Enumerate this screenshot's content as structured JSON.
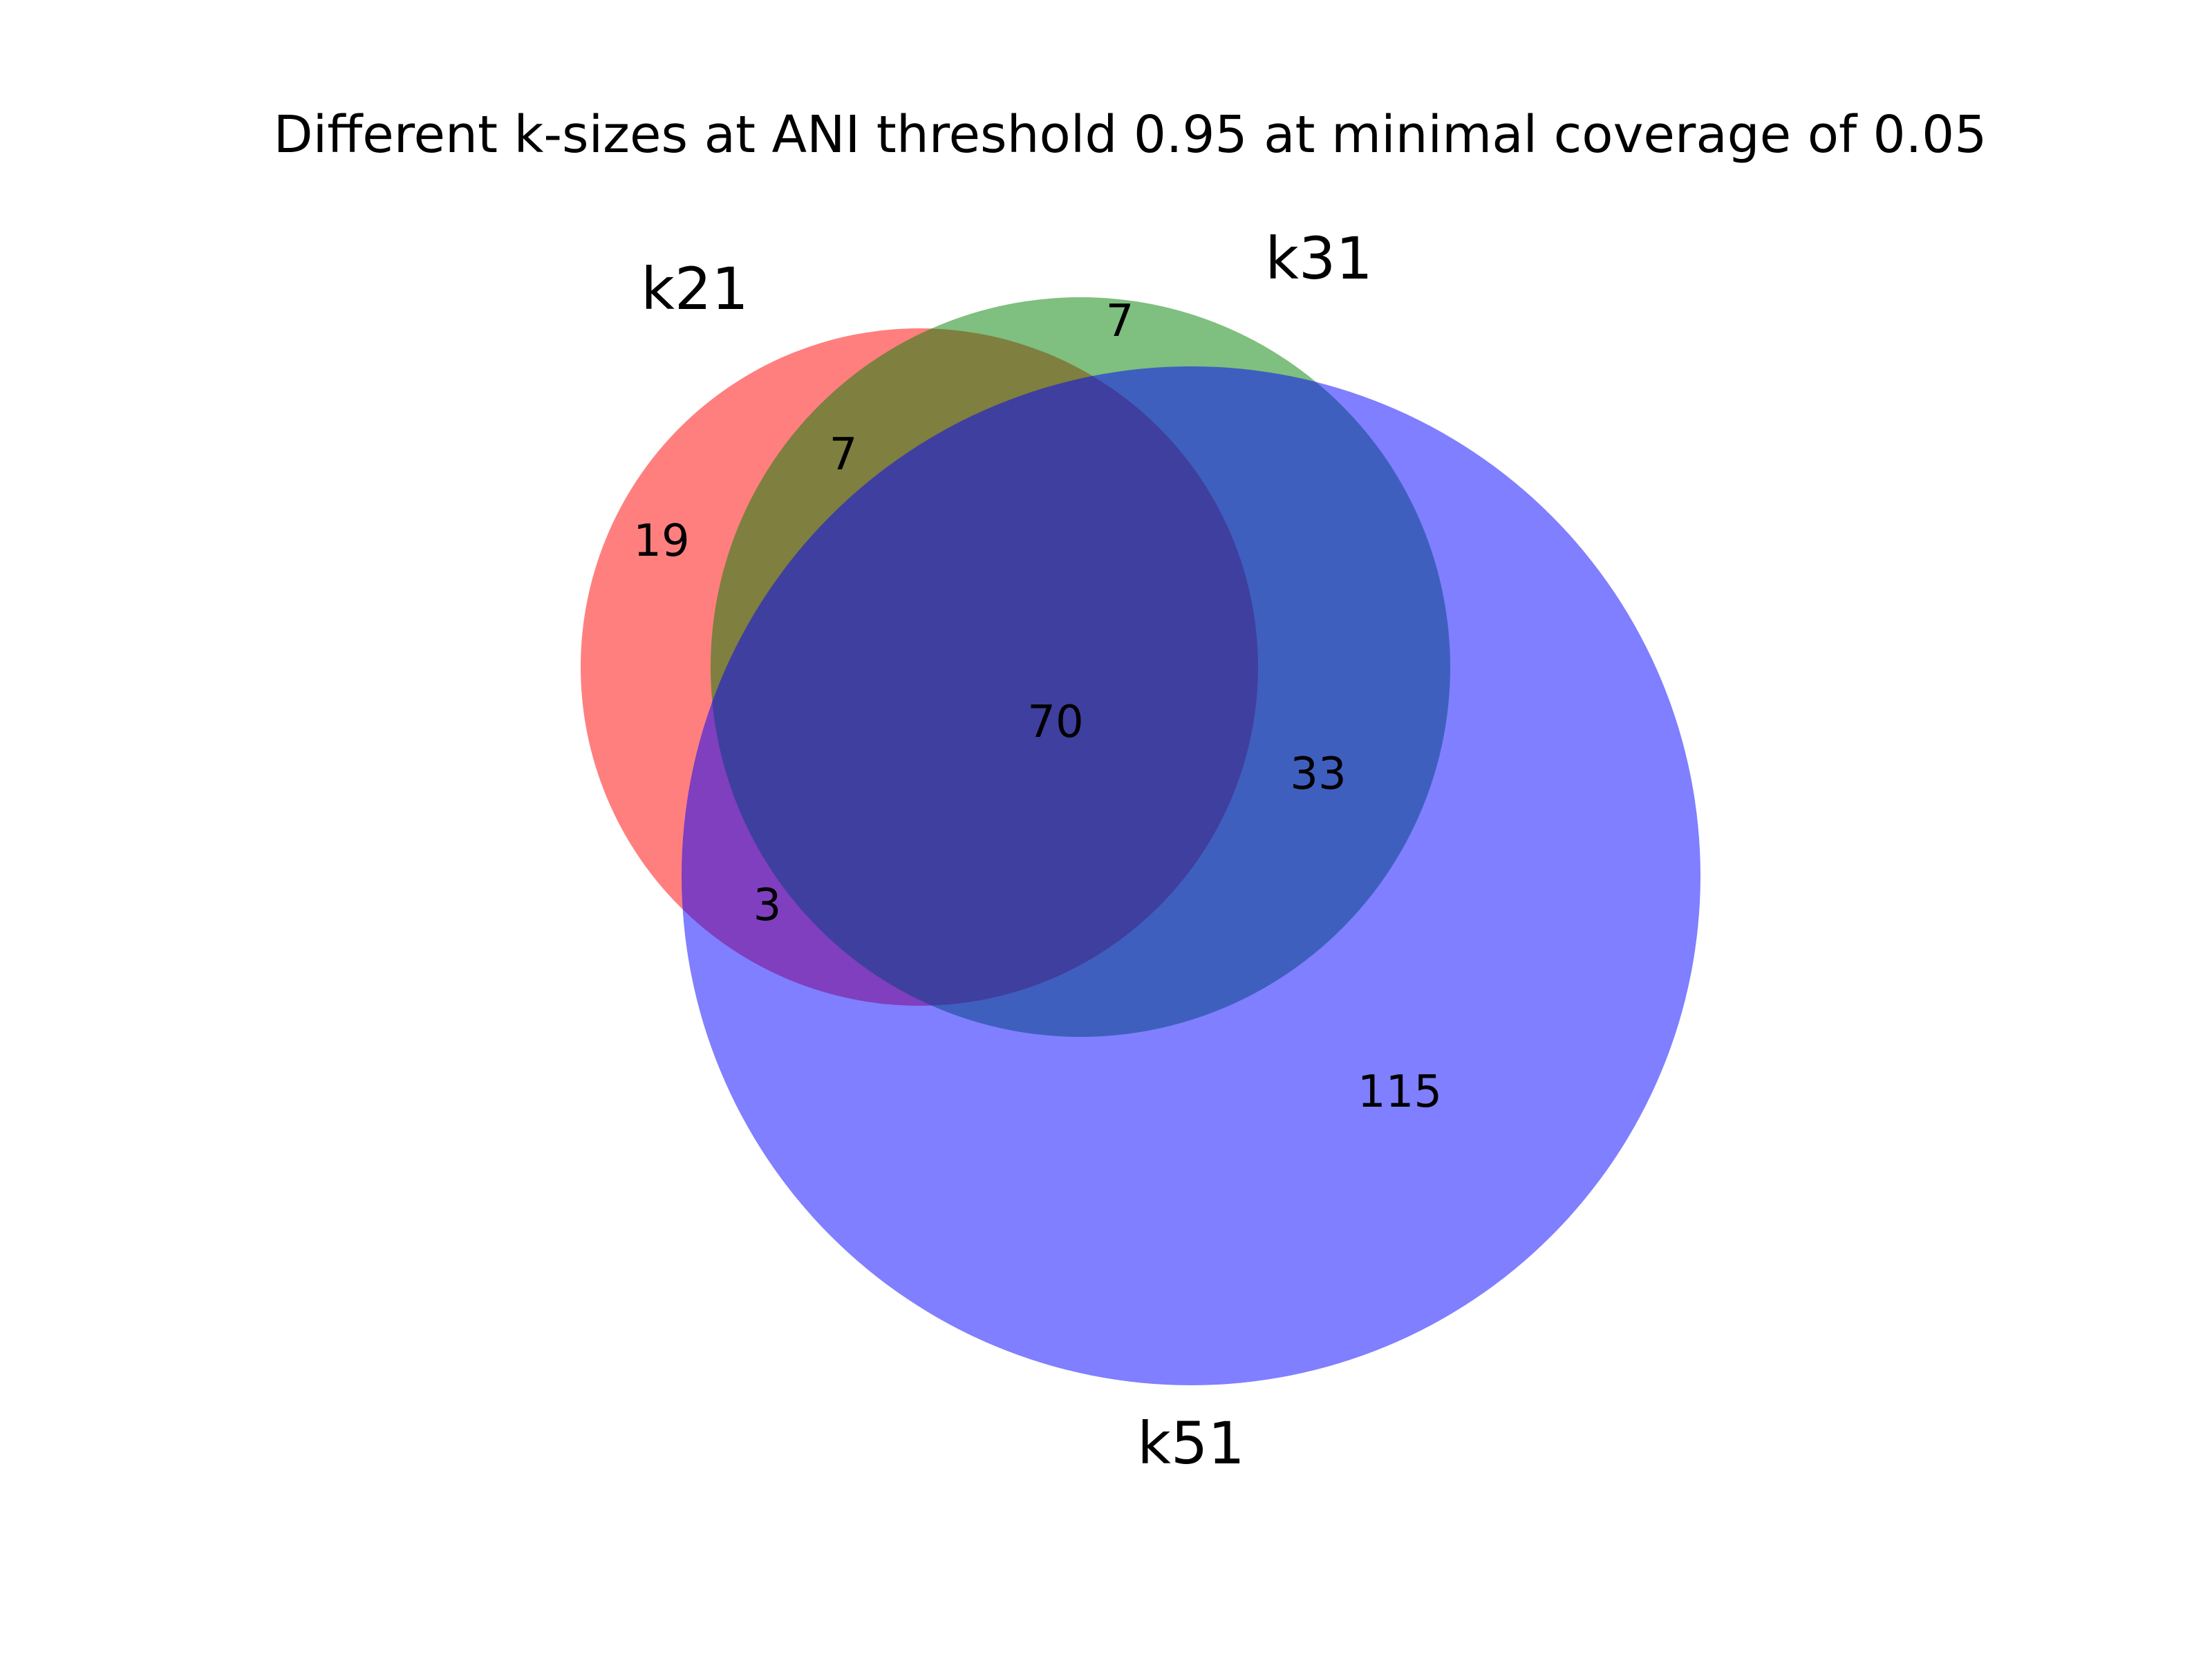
{
  "chart_data": {
    "type": "venn",
    "title": "Different k-sizes at ANI threshold 0.95 at minimal coverage of 0.05",
    "sets": [
      {
        "name": "k21",
        "color": "#ff0000"
      },
      {
        "name": "k31",
        "color": "#008000"
      },
      {
        "name": "k51",
        "color": "#0000ff"
      }
    ],
    "regions": [
      {
        "sets": [
          "k21"
        ],
        "value": "19"
      },
      {
        "sets": [
          "k31"
        ],
        "value": "7"
      },
      {
        "sets": [
          "k51"
        ],
        "value": "115"
      },
      {
        "sets": [
          "k21",
          "k31"
        ],
        "value": "7"
      },
      {
        "sets": [
          "k21",
          "k51"
        ],
        "value": "3"
      },
      {
        "sets": [
          "k31",
          "k51"
        ],
        "value": "33"
      },
      {
        "sets": [
          "k21",
          "k31",
          "k51"
        ],
        "value": "70"
      }
    ],
    "fill_opacity": 0.5
  }
}
